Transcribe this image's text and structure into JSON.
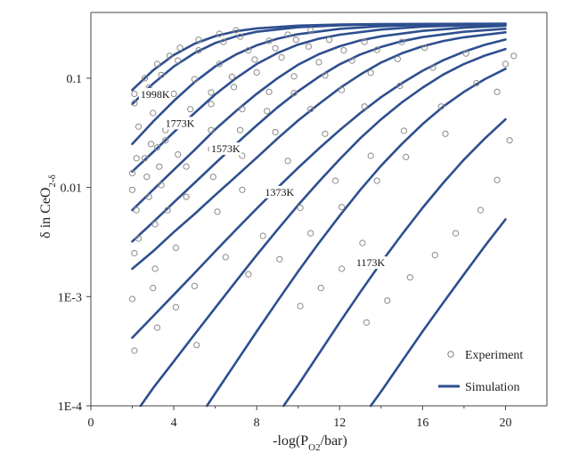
{
  "chart_data": {
    "type": "scatter",
    "xlabel": "-log(P",
    "xlabel_sub": "O2",
    "xlabel_tail": "/bar)",
    "ylabel": "δ in CeO",
    "ylabel_sub": "2-δ",
    "xlim": [
      0,
      22
    ],
    "ylim": [
      0.0001,
      0.4
    ],
    "yscale": "log",
    "x_ticks": [
      "0",
      "4",
      "8",
      "12",
      "16",
      "20"
    ],
    "y_ticks": [
      "1E-4",
      "1E-3",
      "0.01",
      "0.1"
    ],
    "grid": false,
    "legend": {
      "position": "bottom-right",
      "experiment": "Experiment",
      "simulation": "Simulation"
    },
    "colors": {
      "simulation": "#2e4f8f",
      "experiment": "#8a8a8a",
      "axis": "#444444"
    },
    "temperature_labels": [
      {
        "text": "1998K",
        "x": 2.4,
        "y": 0.066
      },
      {
        "text": "1773K",
        "x": 3.6,
        "y": 0.036
      },
      {
        "text": "1573K",
        "x": 5.8,
        "y": 0.021
      },
      {
        "text": "1373K",
        "x": 8.4,
        "y": 0.0084
      },
      {
        "text": "1173K",
        "x": 12.8,
        "y": 0.0019
      }
    ],
    "simulation_series": [
      {
        "x": [
          2.0,
          3.0,
          4.0,
          5.0,
          6.0,
          7.0,
          8.0,
          10.0,
          12.0,
          14.0,
          16.0,
          18.0,
          20.0
        ],
        "y": [
          0.078,
          0.118,
          0.163,
          0.207,
          0.243,
          0.269,
          0.286,
          0.303,
          0.31,
          0.313,
          0.314,
          0.315,
          0.315
        ]
      },
      {
        "x": [
          2.0,
          3.0,
          4.0,
          5.0,
          6.0,
          7.0,
          8.0,
          10.0,
          12.0,
          14.0,
          16.0,
          18.0,
          20.0
        ],
        "y": [
          0.058,
          0.089,
          0.128,
          0.17,
          0.21,
          0.242,
          0.266,
          0.293,
          0.305,
          0.311,
          0.313,
          0.314,
          0.315
        ]
      },
      {
        "x": [
          2.0,
          3.0,
          4.0,
          5.0,
          6.0,
          7.0,
          8.0,
          9.0,
          10.0,
          12.0,
          14.0,
          16.0,
          18.0,
          20.0
        ],
        "y": [
          0.025,
          0.04,
          0.062,
          0.092,
          0.128,
          0.165,
          0.2,
          0.23,
          0.253,
          0.283,
          0.299,
          0.307,
          0.311,
          0.313
        ]
      },
      {
        "x": [
          2.0,
          3.0,
          4.0,
          5.0,
          6.0,
          7.0,
          8.0,
          9.0,
          10.0,
          11.0,
          12.0,
          14.0,
          16.0,
          18.0,
          20.0
        ],
        "y": [
          0.014,
          0.021,
          0.032,
          0.048,
          0.071,
          0.1,
          0.135,
          0.17,
          0.203,
          0.23,
          0.25,
          0.279,
          0.296,
          0.305,
          0.31
        ]
      },
      {
        "x": [
          2.0,
          3.0,
          4.0,
          5.0,
          6.0,
          7.0,
          8.0,
          9.0,
          10.0,
          11.0,
          12.0,
          13.0,
          14.0,
          16.0,
          18.0,
          20.0
        ],
        "y": [
          0.0062,
          0.0095,
          0.0145,
          0.022,
          0.034,
          0.05,
          0.072,
          0.1,
          0.133,
          0.166,
          0.196,
          0.222,
          0.242,
          0.271,
          0.29,
          0.302
        ]
      },
      {
        "x": [
          2.0,
          3.0,
          4.0,
          5.0,
          6.0,
          7.0,
          8.0,
          9.0,
          10.0,
          11.0,
          12.0,
          13.0,
          14.0,
          15.0,
          16.0,
          18.0,
          20.0
        ],
        "y": [
          0.0032,
          0.0048,
          0.0073,
          0.011,
          0.0166,
          0.025,
          0.037,
          0.054,
          0.076,
          0.103,
          0.134,
          0.165,
          0.193,
          0.218,
          0.238,
          0.266,
          0.284
        ]
      },
      {
        "x": [
          2.0,
          3.0,
          4.0,
          5.0,
          6.0,
          7.0,
          8.0,
          9.0,
          10.0,
          11.0,
          12.0,
          13.0,
          14.0,
          15.0,
          16.0,
          17.0,
          18.0,
          20.0
        ],
        "y": [
          0.0018,
          0.0026,
          0.0039,
          0.0057,
          0.0085,
          0.0126,
          0.0187,
          0.028,
          0.041,
          0.058,
          0.081,
          0.108,
          0.139,
          0.169,
          0.196,
          0.219,
          0.237,
          0.263
        ]
      },
      {
        "x": [
          2.0,
          3.0,
          4.0,
          5.0,
          6.0,
          7.0,
          8.0,
          9.0,
          10.0,
          11.0,
          12.0,
          13.0,
          14.0,
          15.0,
          16.0,
          17.0,
          18.0,
          19.0,
          20.0
        ],
        "y": [
          0.00042,
          0.00066,
          0.00104,
          0.00164,
          0.0026,
          0.0041,
          0.0064,
          0.0099,
          0.0151,
          0.0227,
          0.0334,
          0.048,
          0.067,
          0.09,
          0.117,
          0.146,
          0.175,
          0.202,
          0.226
        ]
      },
      {
        "x": [
          2.4,
          3.0,
          4.0,
          5.0,
          6.0,
          7.0,
          8.0,
          9.0,
          10.0,
          11.0,
          12.0,
          13.0,
          14.0,
          15.0,
          16.0,
          17.0,
          18.0,
          19.0,
          20.0
        ],
        "y": [
          0.0001,
          0.000145,
          0.000255,
          0.00045,
          0.00079,
          0.00138,
          0.0024,
          0.0041,
          0.0069,
          0.0113,
          0.0181,
          0.0282,
          0.042,
          0.06,
          0.082,
          0.108,
          0.135,
          0.161,
          0.185
        ]
      },
      {
        "x": [
          5.6,
          6.0,
          7.0,
          8.0,
          9.0,
          10.0,
          11.0,
          12.0,
          13.0,
          14.0,
          15.0,
          16.0,
          17.0,
          18.0,
          19.0,
          20.0
        ],
        "y": [
          0.0001,
          0.00013,
          0.00025,
          0.00048,
          0.00091,
          0.0017,
          0.0031,
          0.0055,
          0.0095,
          0.0158,
          0.025,
          0.038,
          0.055,
          0.075,
          0.098,
          0.122
        ]
      },
      {
        "x": [
          9.3,
          10.0,
          11.0,
          12.0,
          13.0,
          14.0,
          15.0,
          16.0,
          17.0,
          18.0,
          19.0,
          20.0
        ],
        "y": [
          0.0001,
          0.000155,
          0.0003,
          0.00058,
          0.0011,
          0.00205,
          0.0037,
          0.0065,
          0.011,
          0.018,
          0.028,
          0.042
        ]
      },
      {
        "x": [
          13.5,
          14.0,
          15.0,
          16.0,
          17.0,
          18.0,
          19.0,
          20.0
        ],
        "y": [
          0.0001,
          0.000135,
          0.000255,
          0.00048,
          0.00088,
          0.0016,
          0.0029,
          0.0051
        ]
      }
    ],
    "experiment_points": [
      {
        "x": 2.1,
        "y": 0.072
      },
      {
        "x": 2.6,
        "y": 0.1
      },
      {
        "x": 3.2,
        "y": 0.135
      },
      {
        "x": 3.8,
        "y": 0.16
      },
      {
        "x": 4.3,
        "y": 0.19
      },
      {
        "x": 5.2,
        "y": 0.225
      },
      {
        "x": 6.2,
        "y": 0.255
      },
      {
        "x": 7.0,
        "y": 0.275
      },
      {
        "x": 2.1,
        "y": 0.059
      },
      {
        "x": 2.8,
        "y": 0.082
      },
      {
        "x": 3.4,
        "y": 0.107
      },
      {
        "x": 4.2,
        "y": 0.145
      },
      {
        "x": 5.2,
        "y": 0.18
      },
      {
        "x": 6.4,
        "y": 0.215
      },
      {
        "x": 7.2,
        "y": 0.24
      },
      {
        "x": 2.3,
        "y": 0.036
      },
      {
        "x": 3.0,
        "y": 0.048
      },
      {
        "x": 4.0,
        "y": 0.072
      },
      {
        "x": 5.0,
        "y": 0.098
      },
      {
        "x": 6.2,
        "y": 0.135
      },
      {
        "x": 7.6,
        "y": 0.18
      },
      {
        "x": 8.6,
        "y": 0.22
      },
      {
        "x": 9.5,
        "y": 0.25
      },
      {
        "x": 10.6,
        "y": 0.275
      },
      {
        "x": 2.2,
        "y": 0.0185
      },
      {
        "x": 2.9,
        "y": 0.025
      },
      {
        "x": 3.6,
        "y": 0.0335
      },
      {
        "x": 4.8,
        "y": 0.052
      },
      {
        "x": 5.8,
        "y": 0.074
      },
      {
        "x": 6.8,
        "y": 0.103
      },
      {
        "x": 7.9,
        "y": 0.148
      },
      {
        "x": 8.9,
        "y": 0.188
      },
      {
        "x": 9.9,
        "y": 0.225
      },
      {
        "x": 2.0,
        "y": 0.0135
      },
      {
        "x": 2.6,
        "y": 0.0185
      },
      {
        "x": 3.2,
        "y": 0.0232
      },
      {
        "x": 3.6,
        "y": 0.027
      },
      {
        "x": 4.5,
        "y": 0.038
      },
      {
        "x": 5.8,
        "y": 0.058
      },
      {
        "x": 6.9,
        "y": 0.083
      },
      {
        "x": 8.0,
        "y": 0.113
      },
      {
        "x": 9.2,
        "y": 0.155
      },
      {
        "x": 10.5,
        "y": 0.195
      },
      {
        "x": 11.5,
        "y": 0.225
      },
      {
        "x": 2.0,
        "y": 0.0095
      },
      {
        "x": 2.7,
        "y": 0.0125
      },
      {
        "x": 3.3,
        "y": 0.0155
      },
      {
        "x": 4.2,
        "y": 0.02
      },
      {
        "x": 5.8,
        "y": 0.0335
      },
      {
        "x": 7.3,
        "y": 0.052
      },
      {
        "x": 8.6,
        "y": 0.075
      },
      {
        "x": 9.8,
        "y": 0.104
      },
      {
        "x": 11.0,
        "y": 0.14
      },
      {
        "x": 12.2,
        "y": 0.18
      },
      {
        "x": 13.2,
        "y": 0.215
      },
      {
        "x": 2.2,
        "y": 0.0062
      },
      {
        "x": 2.8,
        "y": 0.0082
      },
      {
        "x": 3.4,
        "y": 0.0105
      },
      {
        "x": 4.6,
        "y": 0.0155
      },
      {
        "x": 5.8,
        "y": 0.0225
      },
      {
        "x": 7.2,
        "y": 0.0335
      },
      {
        "x": 8.5,
        "y": 0.05
      },
      {
        "x": 9.8,
        "y": 0.073
      },
      {
        "x": 11.3,
        "y": 0.106
      },
      {
        "x": 12.6,
        "y": 0.145
      },
      {
        "x": 13.8,
        "y": 0.182
      },
      {
        "x": 15.0,
        "y": 0.215
      },
      {
        "x": 2.3,
        "y": 0.0034
      },
      {
        "x": 3.1,
        "y": 0.0046
      },
      {
        "x": 3.7,
        "y": 0.0062
      },
      {
        "x": 4.6,
        "y": 0.0082
      },
      {
        "x": 5.9,
        "y": 0.0125
      },
      {
        "x": 7.3,
        "y": 0.0195
      },
      {
        "x": 8.9,
        "y": 0.032
      },
      {
        "x": 10.6,
        "y": 0.052
      },
      {
        "x": 12.1,
        "y": 0.078
      },
      {
        "x": 13.5,
        "y": 0.112
      },
      {
        "x": 14.8,
        "y": 0.15
      },
      {
        "x": 16.1,
        "y": 0.19
      },
      {
        "x": 2.1,
        "y": 0.0025
      },
      {
        "x": 3.1,
        "y": 0.0018
      },
      {
        "x": 4.1,
        "y": 0.0028
      },
      {
        "x": 6.1,
        "y": 0.006
      },
      {
        "x": 7.3,
        "y": 0.0095
      },
      {
        "x": 9.5,
        "y": 0.0175
      },
      {
        "x": 11.3,
        "y": 0.031
      },
      {
        "x": 13.2,
        "y": 0.055
      },
      {
        "x": 14.9,
        "y": 0.085
      },
      {
        "x": 16.5,
        "y": 0.125
      },
      {
        "x": 18.1,
        "y": 0.168
      },
      {
        "x": 2.0,
        "y": 0.00095
      },
      {
        "x": 3.0,
        "y": 0.0012
      },
      {
        "x": 5.0,
        "y": 0.00125
      },
      {
        "x": 6.5,
        "y": 0.0023
      },
      {
        "x": 8.3,
        "y": 0.0036
      },
      {
        "x": 10.1,
        "y": 0.0065
      },
      {
        "x": 11.8,
        "y": 0.0115
      },
      {
        "x": 13.5,
        "y": 0.0195
      },
      {
        "x": 15.1,
        "y": 0.033
      },
      {
        "x": 16.9,
        "y": 0.055
      },
      {
        "x": 18.6,
        "y": 0.09
      },
      {
        "x": 20.0,
        "y": 0.135
      },
      {
        "x": 2.1,
        "y": 0.00032
      },
      {
        "x": 3.2,
        "y": 0.00052
      },
      {
        "x": 4.1,
        "y": 0.0008
      },
      {
        "x": 5.1,
        "y": 0.00036
      },
      {
        "x": 7.6,
        "y": 0.0016
      },
      {
        "x": 9.1,
        "y": 0.0022
      },
      {
        "x": 10.6,
        "y": 0.0038
      },
      {
        "x": 12.1,
        "y": 0.0066
      },
      {
        "x": 13.8,
        "y": 0.0115
      },
      {
        "x": 15.2,
        "y": 0.019
      },
      {
        "x": 17.1,
        "y": 0.031
      },
      {
        "x": 19.6,
        "y": 0.075
      },
      {
        "x": 20.4,
        "y": 0.16
      },
      {
        "x": 10.1,
        "y": 0.00082
      },
      {
        "x": 11.1,
        "y": 0.0012
      },
      {
        "x": 12.1,
        "y": 0.0018
      },
      {
        "x": 13.1,
        "y": 0.0031
      },
      {
        "x": 13.3,
        "y": 0.00058
      },
      {
        "x": 14.3,
        "y": 0.00092
      },
      {
        "x": 15.4,
        "y": 0.0015
      },
      {
        "x": 16.6,
        "y": 0.0024
      },
      {
        "x": 17.6,
        "y": 0.0038
      },
      {
        "x": 18.8,
        "y": 0.0062
      },
      {
        "x": 19.6,
        "y": 0.0117
      },
      {
        "x": 20.2,
        "y": 0.027
      }
    ]
  }
}
